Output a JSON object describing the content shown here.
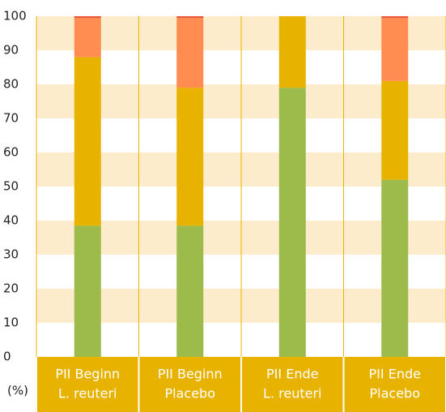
{
  "chart_data": {
    "type": "stacked_bar",
    "categories": [
      [
        "PII Beginn",
        "L. reuteri"
      ],
      [
        "PII Beginn",
        "Placebo"
      ],
      [
        "PII Ende",
        "L. reuteri"
      ],
      [
        "PII Ende",
        "Placebo"
      ]
    ],
    "series": [
      {
        "color": "#9cbb4b",
        "values": [
          38.5,
          38.5,
          79,
          52
        ]
      },
      {
        "color": "#e8b300",
        "values": [
          49.5,
          40.5,
          21,
          29
        ]
      },
      {
        "color": "#ff8c50",
        "values": [
          11.5,
          20.5,
          0,
          18.5
        ]
      },
      {
        "color": "#e5553a",
        "values": [
          0.5,
          0.5,
          0,
          0.5
        ]
      }
    ],
    "y_unit_label": "(%)",
    "ylim": [
      0,
      100
    ],
    "yticks": [
      0,
      10,
      20,
      30,
      40,
      50,
      60,
      70,
      80,
      90,
      100
    ],
    "grid": true,
    "stripe_color": "#fdeccb",
    "band_color": "#e8b300"
  }
}
